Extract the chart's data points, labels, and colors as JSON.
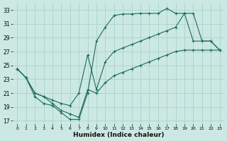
{
  "bg_color": "#cce8e2",
  "grid_color": "#a8d4cc",
  "line_color": "#1a6b5a",
  "xlim": [
    -0.5,
    23.5
  ],
  "ylim": [
    16.5,
    34.0
  ],
  "xticks": [
    0,
    1,
    2,
    3,
    4,
    5,
    6,
    7,
    8,
    9,
    10,
    11,
    12,
    13,
    14,
    15,
    16,
    17,
    18,
    19,
    20,
    21,
    22,
    23
  ],
  "yticks": [
    17,
    19,
    21,
    23,
    25,
    27,
    29,
    31,
    33
  ],
  "xlabel": "Humidex (Indice chaleur)",
  "curve_top_x": [
    0,
    1,
    2,
    3,
    4,
    5,
    6,
    7,
    8,
    9,
    10,
    11,
    12,
    13,
    14,
    15,
    16,
    17,
    18,
    19,
    20,
    21,
    22,
    23
  ],
  "curve_top_y": [
    24.5,
    23.2,
    20.5,
    19.5,
    19.2,
    18.2,
    17.2,
    17.2,
    21.0,
    28.5,
    30.5,
    32.2,
    32.4,
    32.4,
    32.5,
    32.5,
    32.5,
    33.2,
    32.5,
    32.5,
    32.5,
    28.5,
    28.5,
    27.2
  ],
  "curve_mid_x": [
    0,
    1,
    2,
    3,
    4,
    5,
    6,
    7,
    8,
    9,
    10,
    11,
    12,
    13,
    14,
    15,
    16,
    17,
    18,
    19,
    20,
    21,
    22,
    23
  ],
  "curve_mid_y": [
    24.5,
    23.2,
    21.0,
    20.5,
    20.0,
    19.5,
    19.2,
    21.0,
    26.5,
    21.5,
    25.5,
    27.0,
    27.5,
    28.0,
    28.5,
    29.0,
    29.5,
    30.0,
    30.5,
    32.5,
    28.5,
    28.5,
    28.5,
    27.2
  ],
  "curve_bot_x": [
    0,
    1,
    2,
    3,
    4,
    5,
    6,
    7,
    8,
    9,
    10,
    11,
    12,
    13,
    14,
    15,
    16,
    17,
    18,
    19,
    20,
    21,
    22,
    23
  ],
  "curve_bot_y": [
    24.5,
    23.2,
    21.0,
    20.5,
    19.5,
    18.5,
    18.0,
    17.5,
    21.5,
    21.0,
    22.5,
    23.5,
    24.0,
    24.5,
    25.0,
    25.5,
    26.0,
    26.5,
    27.0,
    27.2,
    27.2,
    27.2,
    27.2,
    27.2
  ]
}
